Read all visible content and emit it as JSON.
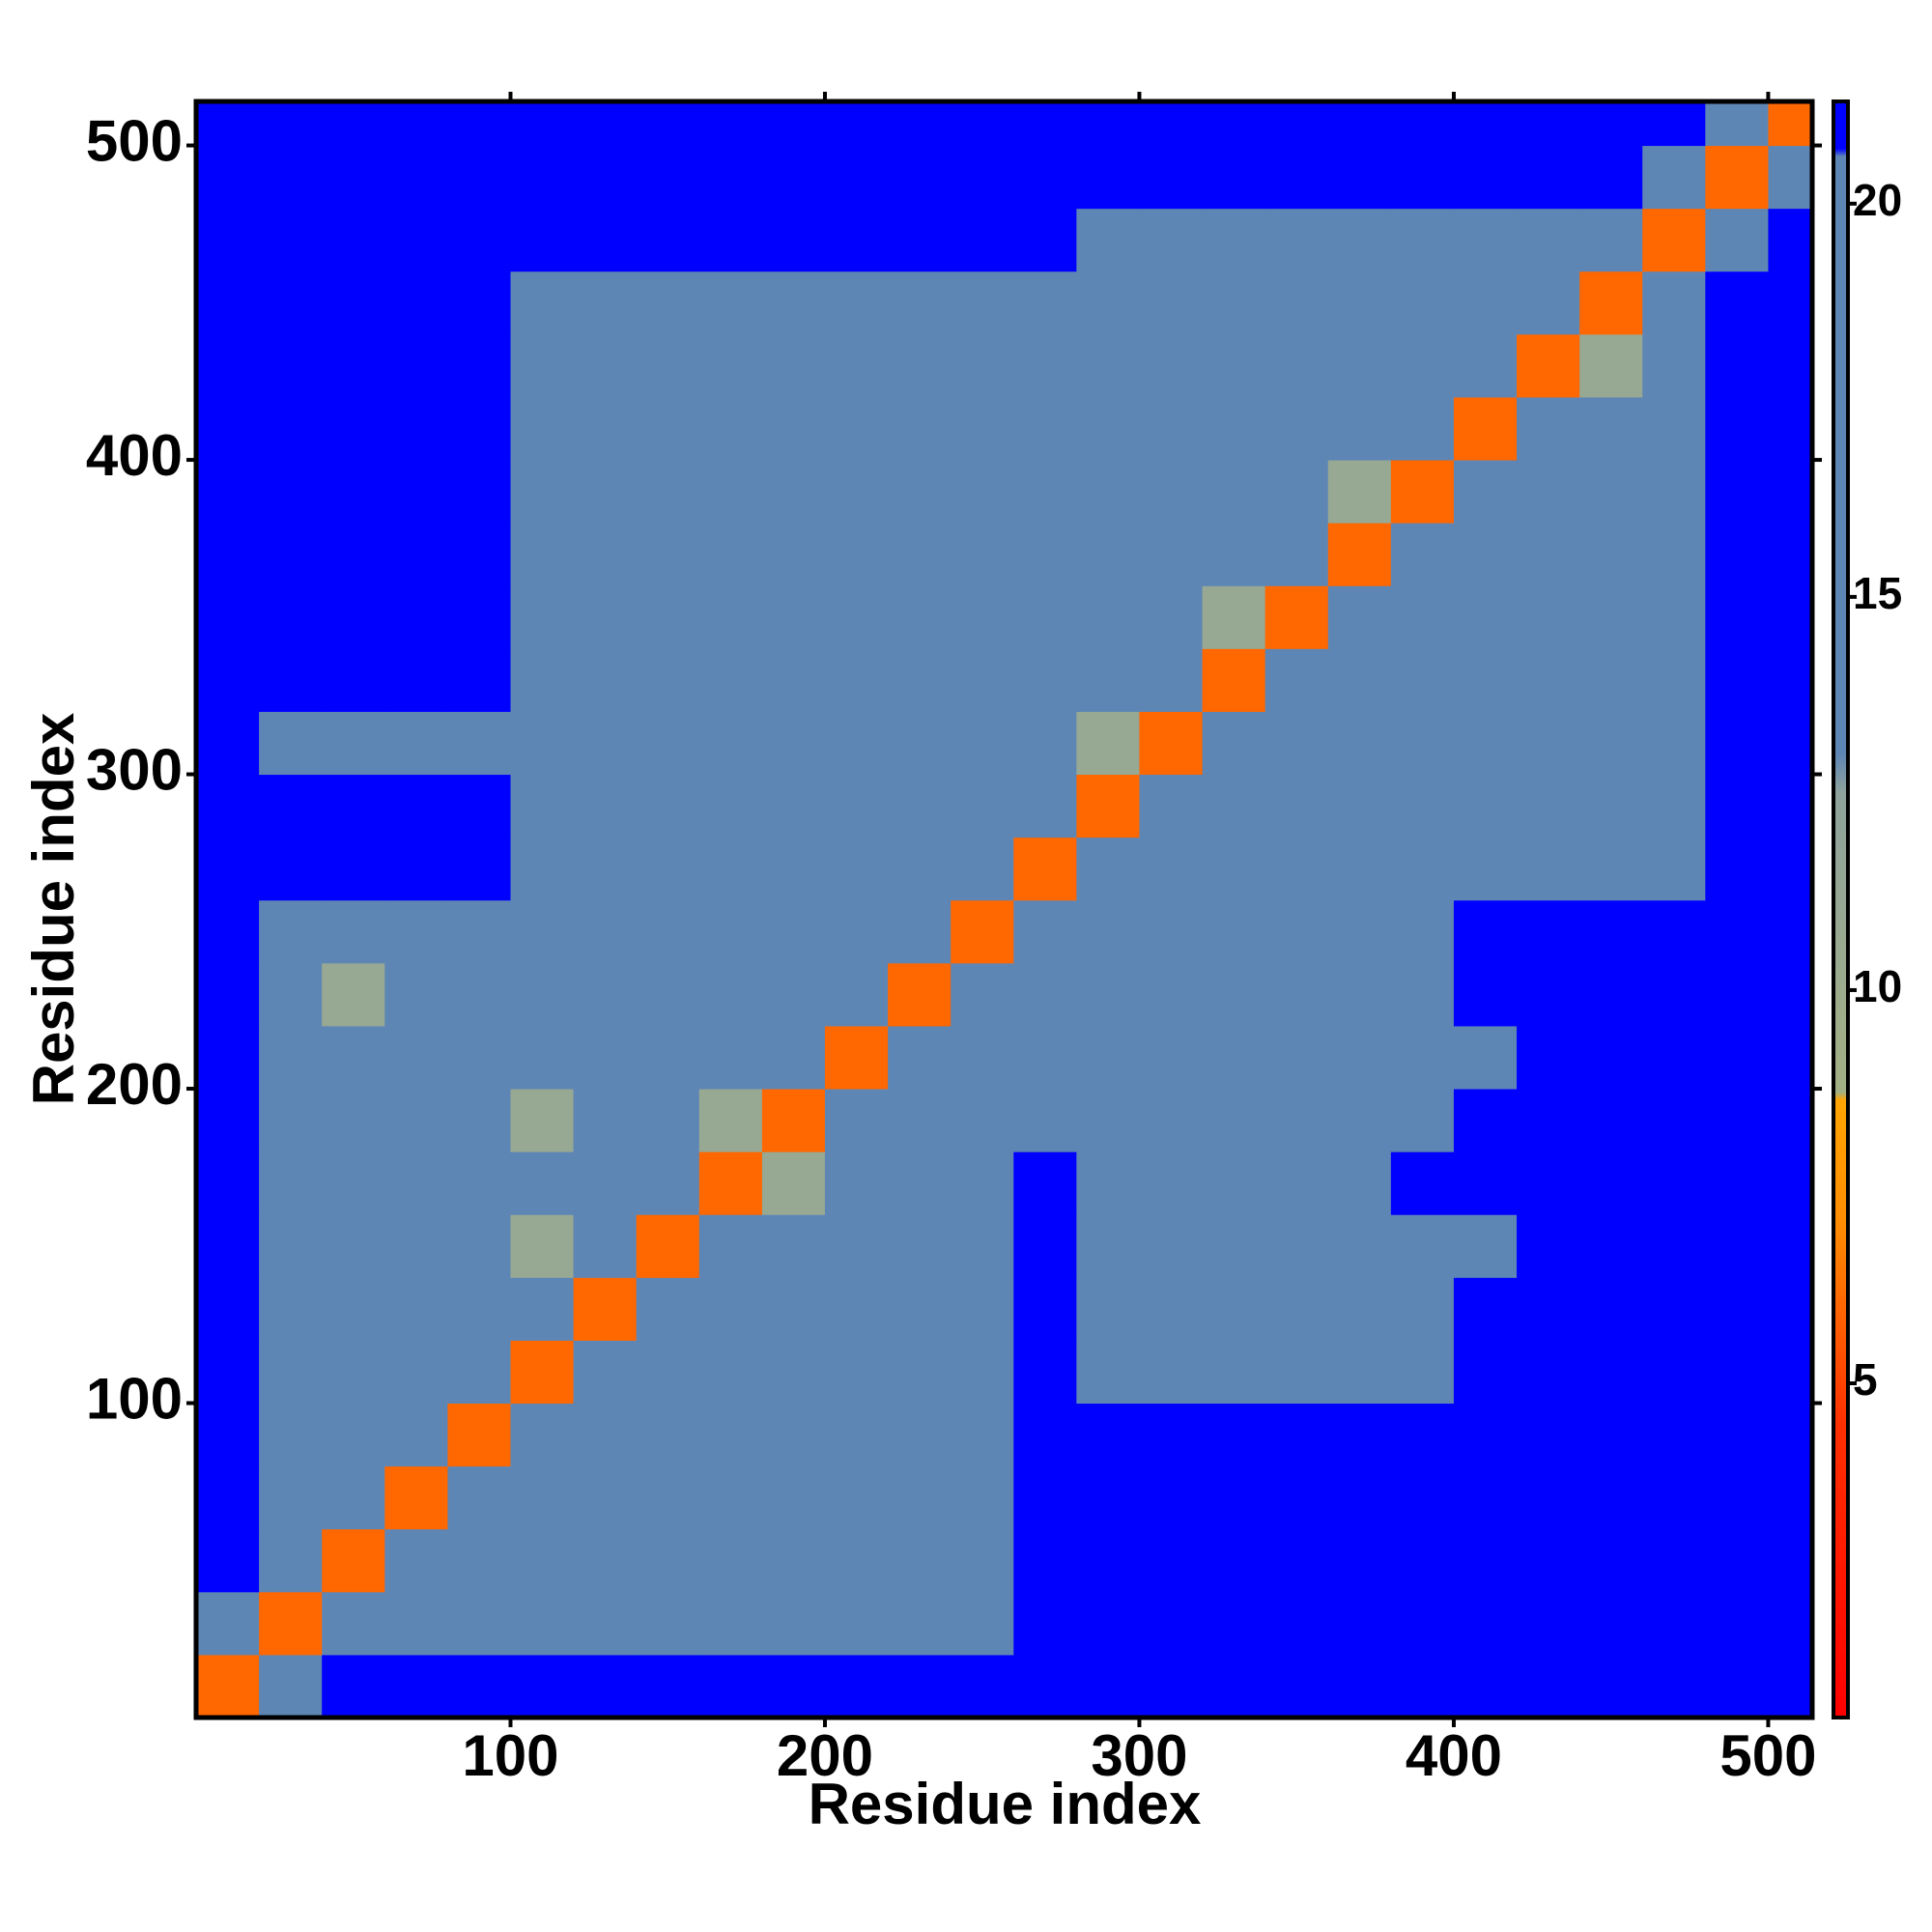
{
  "chart_data": {
    "type": "heatmap",
    "xlabel": "Residue index",
    "ylabel": "Residue index",
    "bins": [
      0,
      20,
      40,
      60,
      80,
      100,
      120,
      140,
      160,
      180,
      200,
      220,
      240,
      260,
      280,
      300,
      320,
      340,
      360,
      380,
      400,
      420,
      440,
      460,
      480,
      500,
      514
    ],
    "xlim": [
      0,
      514
    ],
    "ylim": [
      0,
      514
    ],
    "xticks": [
      100,
      200,
      300,
      400,
      500
    ],
    "yticks": [
      100,
      200,
      300,
      400,
      500
    ],
    "zlim": [
      0.75,
      21.3
    ],
    "zticks": [
      5,
      10,
      15,
      20
    ],
    "colorscale": [
      [
        0.75,
        "#ff0000"
      ],
      [
        4.5,
        "#ff3000"
      ],
      [
        7,
        "#ff8c00"
      ],
      [
        8.6,
        "#ffa500"
      ],
      [
        8.7,
        "#a3b084"
      ],
      [
        12.5,
        "#8fa39c"
      ],
      [
        13,
        "#5e86b5"
      ],
      [
        20.6,
        "#5e86b5"
      ],
      [
        20.7,
        "#0000ff"
      ],
      [
        21.3,
        "#0000ff"
      ]
    ],
    "z": [
      [
        6,
        16,
        21,
        21,
        21,
        21,
        21,
        21,
        21,
        21,
        21,
        21,
        21,
        21,
        21,
        21,
        21,
        21,
        21,
        21,
        21,
        21,
        21,
        21,
        21,
        21
      ],
      [
        16,
        6,
        16,
        16,
        16,
        19,
        19,
        19,
        19,
        19,
        19,
        19,
        19,
        21,
        21,
        21,
        21,
        21,
        21,
        21,
        21,
        21,
        21,
        21,
        21,
        21
      ],
      [
        21,
        16,
        6,
        16,
        16,
        19,
        19,
        19,
        19,
        19,
        19,
        19,
        19,
        21,
        21,
        21,
        21,
        21,
        21,
        21,
        21,
        21,
        21,
        21,
        21,
        21
      ],
      [
        21,
        16,
        16,
        6,
        16,
        19,
        19,
        19,
        19,
        19,
        19,
        19,
        19,
        21,
        21,
        21,
        21,
        21,
        21,
        21,
        21,
        21,
        21,
        21,
        21,
        21
      ],
      [
        21,
        16,
        16,
        16,
        6,
        16,
        19,
        19,
        19,
        19,
        19,
        19,
        19,
        21,
        21,
        21,
        21,
        21,
        21,
        21,
        21,
        21,
        21,
        21,
        21,
        21
      ],
      [
        21,
        19,
        19,
        19,
        19,
        6,
        16,
        16,
        16,
        16,
        16,
        16,
        16,
        21,
        20,
        20,
        20,
        20,
        20,
        20,
        21,
        21,
        21,
        21,
        21,
        21
      ],
      [
        21,
        18,
        18,
        18,
        18,
        16,
        6,
        16,
        16,
        16,
        16,
        16,
        16,
        21,
        20,
        20,
        20,
        20,
        20,
        20,
        21,
        21,
        21,
        21,
        21,
        21
      ],
      [
        21,
        18,
        18,
        18,
        18,
        11,
        16,
        6,
        16,
        16,
        16,
        16,
        16,
        21,
        20,
        20,
        20,
        20,
        20,
        20,
        20,
        21,
        21,
        21,
        21,
        21
      ],
      [
        21,
        19,
        19,
        19,
        19,
        16,
        16,
        16,
        6,
        11,
        16,
        16,
        16,
        21,
        20,
        20,
        20,
        20,
        20,
        21,
        21,
        21,
        21,
        21,
        21,
        21
      ],
      [
        21,
        18,
        18,
        18,
        18,
        11,
        16,
        16,
        11,
        6,
        16,
        16,
        16,
        20,
        20,
        20,
        20,
        20,
        20,
        20,
        21,
        21,
        21,
        21,
        21,
        21
      ],
      [
        21,
        17,
        17,
        17,
        17,
        16,
        16,
        16,
        16,
        16,
        6,
        16,
        16,
        20,
        20,
        20,
        20,
        20,
        20,
        20,
        20,
        21,
        21,
        21,
        21,
        21
      ],
      [
        21,
        17,
        11,
        17,
        17,
        16,
        16,
        16,
        16,
        16,
        16,
        6,
        16,
        19,
        20,
        20,
        20,
        20,
        20,
        20,
        21,
        21,
        21,
        21,
        21,
        21
      ],
      [
        21,
        18,
        18,
        18,
        18,
        16,
        16,
        16,
        16,
        16,
        16,
        16,
        6,
        16,
        20,
        20,
        20,
        20,
        20,
        20,
        21,
        21,
        21,
        21,
        21,
        21
      ],
      [
        21,
        21,
        21,
        21,
        21,
        19,
        19,
        19,
        19,
        19,
        19,
        19,
        16,
        6,
        16,
        20,
        20,
        20,
        20,
        20,
        20,
        20,
        20,
        20,
        21,
        21
      ],
      [
        21,
        21,
        21,
        21,
        21,
        19,
        19,
        19,
        19,
        19,
        19,
        19,
        19,
        16,
        6,
        16,
        16,
        16,
        16,
        16,
        16,
        16,
        16,
        16,
        21,
        21
      ],
      [
        21,
        20,
        20,
        20,
        20,
        19,
        19,
        19,
        19,
        19,
        19,
        19,
        19,
        16,
        11,
        6,
        16,
        16,
        16,
        16,
        16,
        16,
        16,
        16,
        21,
        21
      ],
      [
        21,
        21,
        21,
        21,
        21,
        19,
        19,
        19,
        19,
        19,
        19,
        19,
        19,
        17,
        16,
        16,
        6,
        16,
        16,
        16,
        16,
        16,
        16,
        16,
        21,
        21
      ],
      [
        21,
        21,
        21,
        21,
        21,
        19,
        19,
        19,
        19,
        19,
        19,
        19,
        19,
        17,
        16,
        16,
        11,
        6,
        16,
        16,
        16,
        16,
        16,
        16,
        21,
        21
      ],
      [
        21,
        21,
        21,
        21,
        21,
        20,
        20,
        20,
        20,
        20,
        20,
        20,
        20,
        17,
        16,
        16,
        16,
        16,
        6,
        16,
        16,
        16,
        16,
        16,
        21,
        21
      ],
      [
        21,
        21,
        21,
        21,
        21,
        19,
        19,
        19,
        19,
        19,
        19,
        19,
        19,
        17,
        16,
        16,
        16,
        16,
        11,
        6,
        16,
        16,
        16,
        16,
        21,
        21
      ],
      [
        21,
        21,
        21,
        21,
        21,
        20,
        20,
        20,
        20,
        20,
        20,
        20,
        20,
        18,
        16,
        16,
        16,
        16,
        16,
        16,
        6,
        16,
        16,
        16,
        21,
        21
      ],
      [
        21,
        21,
        21,
        21,
        21,
        20,
        20,
        20,
        20,
        20,
        20,
        20,
        20,
        18,
        16,
        16,
        16,
        16,
        16,
        16,
        16,
        6,
        11,
        16,
        21,
        21
      ],
      [
        21,
        21,
        21,
        21,
        21,
        20,
        20,
        20,
        20,
        20,
        20,
        20,
        20,
        19,
        16,
        16,
        16,
        16,
        16,
        16,
        16,
        16,
        6,
        16,
        21,
        21
      ],
      [
        21,
        21,
        21,
        21,
        21,
        21,
        21,
        21,
        21,
        21,
        21,
        21,
        21,
        21,
        19,
        19,
        19,
        19,
        19,
        19,
        19,
        19,
        19,
        6,
        16,
        21
      ],
      [
        21,
        21,
        21,
        21,
        21,
        21,
        21,
        21,
        21,
        21,
        21,
        21,
        21,
        21,
        21,
        21,
        21,
        21,
        21,
        21,
        21,
        21,
        21,
        16,
        6,
        16
      ],
      [
        21,
        21,
        21,
        21,
        21,
        21,
        21,
        21,
        21,
        21,
        21,
        21,
        21,
        21,
        21,
        21,
        21,
        21,
        21,
        21,
        21,
        21,
        21,
        21,
        16,
        6
      ]
    ]
  }
}
